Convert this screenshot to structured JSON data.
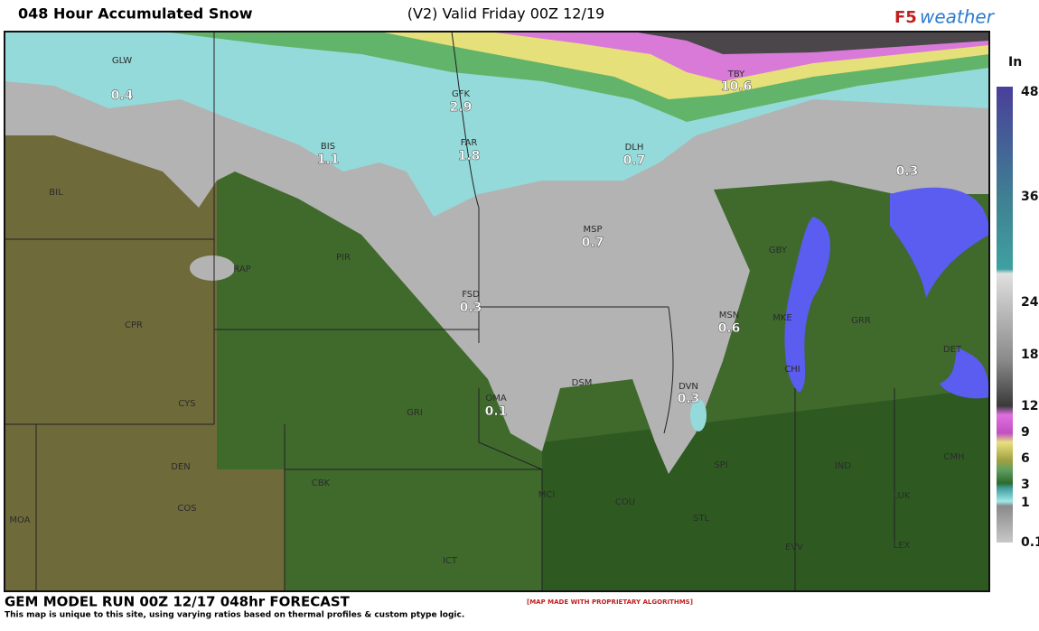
{
  "header": {
    "title": "048 Hour Accumulated Snow",
    "valid_time": "(V2) Valid Friday 00Z 12/19",
    "logo_f5": "F5",
    "logo_weather": "weather"
  },
  "legend": {
    "unit": "In",
    "labels": [
      "48",
      "36",
      "24",
      "18",
      "12",
      "9",
      "6",
      "3",
      "1",
      "0.1"
    ]
  },
  "stations": [
    {
      "name": "GLW",
      "value": 0.4
    },
    {
      "name": "GFK",
      "value": 2.9
    },
    {
      "name": "TBY",
      "value": 10.6
    },
    {
      "name": "BIS",
      "value": 1.1
    },
    {
      "name": "FAR",
      "value": 1.8
    },
    {
      "name": "DLH",
      "value": 0.7
    },
    {
      "value": 0.3
    },
    {
      "name": "MSP",
      "value": 0.7
    },
    {
      "name": "FSD",
      "value": 0.3
    },
    {
      "name": "MSN",
      "value": 0.6
    },
    {
      "name": "OMA",
      "value": 0.1
    },
    {
      "name": "DVN",
      "value": 0.3
    }
  ],
  "cities": [
    "BIL",
    "RAP",
    "PIR",
    "CPR",
    "CYS",
    "DEN",
    "COS",
    "MOA",
    "GRI",
    "CBK",
    "DSM",
    "MCI",
    "COU",
    "ICT",
    "STL",
    "SPI",
    "IND",
    "CMH",
    "LUK",
    "LEX",
    "EVV",
    "GBY",
    "MKE",
    "GRR",
    "DET",
    "CHI"
  ],
  "footer": {
    "model_run": "GEM MODEL RUN 00Z 12/17 048hr FORECAST",
    "note": "This map is unique to this site, using varying ratios based on thermal profiles & custom ptype logic.",
    "credit": "[MAP MADE WITH PROPRIETARY ALGORITHMS]"
  }
}
